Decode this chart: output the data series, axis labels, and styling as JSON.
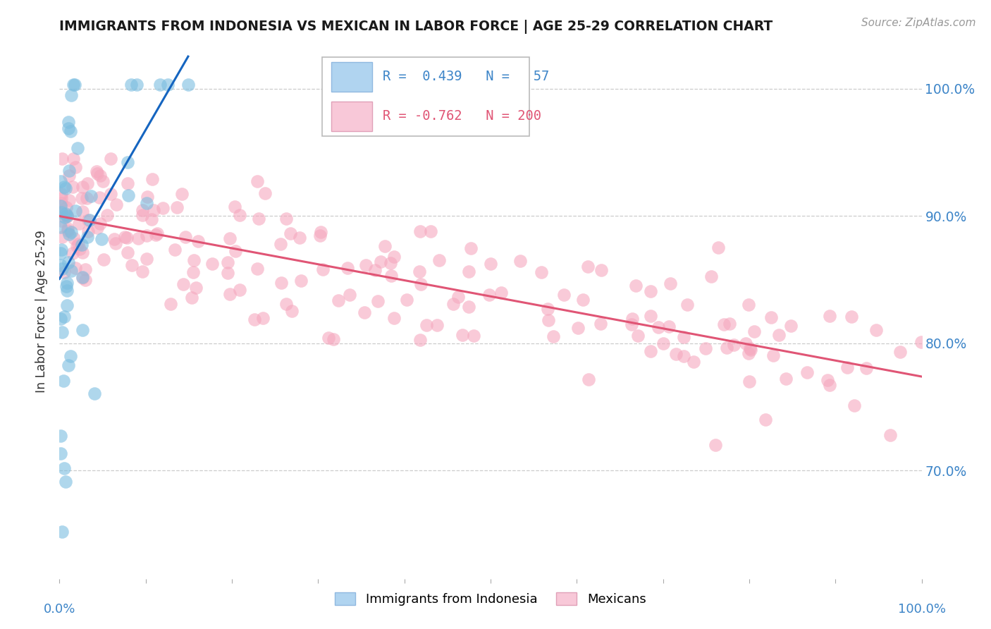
{
  "title": "IMMIGRANTS FROM INDONESIA VS MEXICAN IN LABOR FORCE | AGE 25-29 CORRELATION CHART",
  "source": "Source: ZipAtlas.com",
  "ylabel": "In Labor Force | Age 25-29",
  "xlim": [
    0.0,
    1.0
  ],
  "ylim": [
    0.615,
    1.035
  ],
  "yticks": [
    0.7,
    0.8,
    0.9,
    1.0
  ],
  "ytick_labels": [
    "70.0%",
    "80.0%",
    "90.0%",
    "100.0%"
  ],
  "indonesia_R": 0.439,
  "indonesia_N": 57,
  "mexican_R": -0.762,
  "mexican_N": 200,
  "indonesia_color": "#7bbde0",
  "mexican_color": "#f5a8be",
  "indonesia_line_color": "#1565c0",
  "mexican_line_color": "#e05575",
  "legend_bg": "#ffffff",
  "legend_border": "#bbbbbb",
  "legend_indo_fill": "#b0d4f0",
  "legend_indo_border": "#90b8e0",
  "legend_mex_fill": "#f8c8d8",
  "legend_mex_border": "#e0a0b8",
  "background_color": "#ffffff",
  "grid_color": "#cccccc",
  "title_color": "#1a1a1a",
  "axis_label_color": "#3d85c8",
  "source_color": "#999999"
}
